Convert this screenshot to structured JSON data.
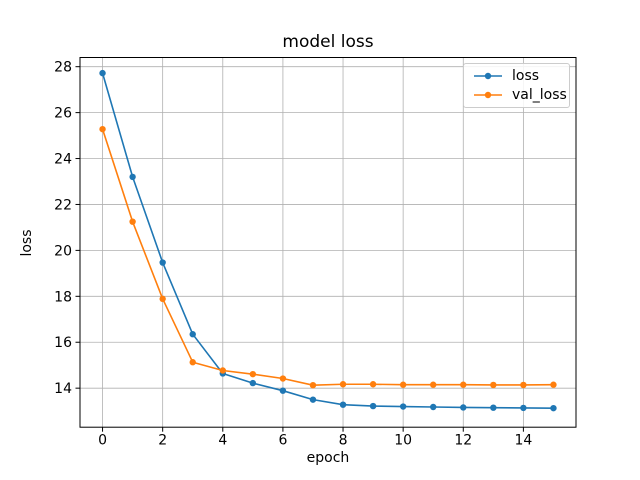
{
  "figure": {
    "background": "#ffffff"
  },
  "chart_data": {
    "type": "line",
    "title": "model loss",
    "xlabel": "epoch",
    "ylabel": "loss",
    "x": [
      0,
      1,
      2,
      3,
      4,
      5,
      6,
      7,
      8,
      9,
      10,
      11,
      12,
      13,
      14,
      15
    ],
    "series": [
      {
        "name": "loss",
        "color": "#1f77b4",
        "values": [
          27.72,
          23.2,
          19.47,
          16.35,
          14.64,
          14.22,
          13.89,
          13.5,
          13.28,
          13.22,
          13.2,
          13.18,
          13.16,
          13.15,
          13.14,
          13.13
        ]
      },
      {
        "name": "val_loss",
        "color": "#ff7f0e",
        "values": [
          25.28,
          21.25,
          17.89,
          15.13,
          14.77,
          14.61,
          14.42,
          14.13,
          14.17,
          14.17,
          14.15,
          14.15,
          14.15,
          14.14,
          14.14,
          14.15
        ]
      }
    ],
    "xlim": [
      -0.75,
      15.75
    ],
    "ylim": [
      12.3,
      28.4
    ],
    "xticks": [
      0,
      2,
      4,
      6,
      8,
      10,
      12,
      14
    ],
    "yticks": [
      14,
      16,
      18,
      20,
      22,
      24,
      26,
      28
    ],
    "grid": true,
    "legend": {
      "position": "upper right"
    },
    "colors": {
      "grid": "#b0b0b0",
      "spine": "#000000",
      "text": "#000000",
      "legend_border": "#cccccc"
    }
  }
}
